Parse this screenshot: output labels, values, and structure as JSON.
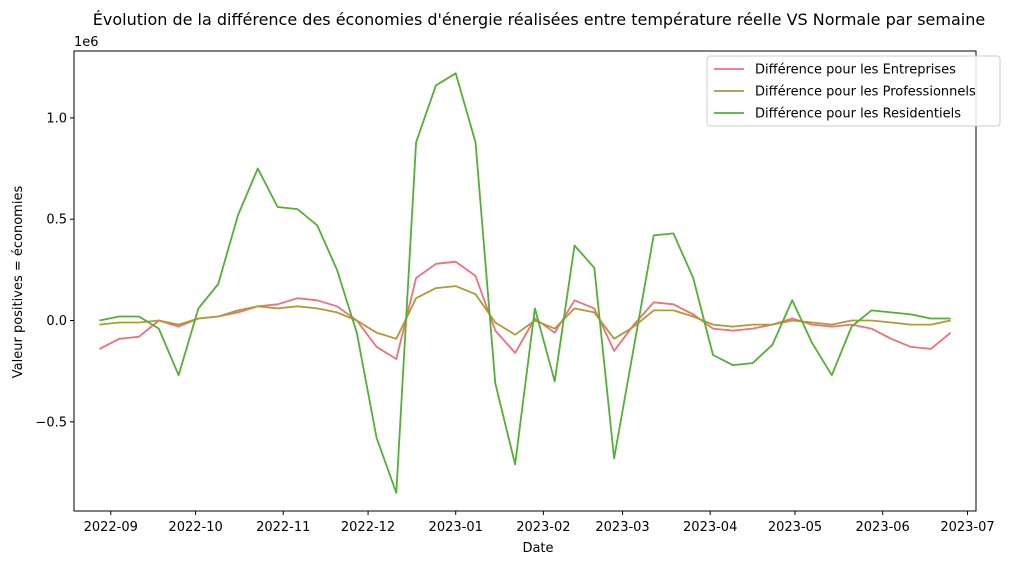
{
  "chart_data": {
    "type": "line",
    "title": "Évolution de la différence des économies d'énergie réalisées entre température réelle VS Normale par semaine",
    "xlabel": "Date",
    "ylabel": "Valeur positives = économies",
    "y_offset_text": "1e6",
    "xlim": [
      "2022-08-19",
      "2023-07-04"
    ],
    "ylim": [
      -0.94,
      1.33
    ],
    "x_ticks": [
      {
        "date": "2022-09-01",
        "label": "2022-09"
      },
      {
        "date": "2022-10-01",
        "label": "2022-10"
      },
      {
        "date": "2022-11-01",
        "label": "2022-11"
      },
      {
        "date": "2022-12-01",
        "label": "2022-12"
      },
      {
        "date": "2023-01-01",
        "label": "2023-01"
      },
      {
        "date": "2023-02-01",
        "label": "2023-02"
      },
      {
        "date": "2023-03-01",
        "label": "2023-03"
      },
      {
        "date": "2023-04-01",
        "label": "2023-04"
      },
      {
        "date": "2023-05-01",
        "label": "2023-05"
      },
      {
        "date": "2023-06-01",
        "label": "2023-06"
      },
      {
        "date": "2023-07-01",
        "label": "2023-07"
      }
    ],
    "y_ticks": [
      {
        "value": -0.5,
        "label": "−0.5"
      },
      {
        "value": 0.0,
        "label": "0.0"
      },
      {
        "value": 0.5,
        "label": "0.5"
      },
      {
        "value": 1.0,
        "label": "1.0"
      }
    ],
    "legend_position": "top-right",
    "grid": false,
    "x": [
      "2022-08-28",
      "2022-09-04",
      "2022-09-11",
      "2022-09-18",
      "2022-09-25",
      "2022-10-02",
      "2022-10-09",
      "2022-10-16",
      "2022-10-23",
      "2022-10-30",
      "2022-11-06",
      "2022-11-13",
      "2022-11-20",
      "2022-11-27",
      "2022-12-04",
      "2022-12-11",
      "2022-12-18",
      "2022-12-25",
      "2023-01-01",
      "2023-01-08",
      "2023-01-15",
      "2023-01-22",
      "2023-01-29",
      "2023-02-05",
      "2023-02-12",
      "2023-02-19",
      "2023-02-26",
      "2023-03-05",
      "2023-03-12",
      "2023-03-19",
      "2023-03-26",
      "2023-04-02",
      "2023-04-09",
      "2023-04-16",
      "2023-04-23",
      "2023-04-30",
      "2023-05-07",
      "2023-05-14",
      "2023-05-21",
      "2023-05-28",
      "2023-06-04",
      "2023-06-11",
      "2023-06-18",
      "2023-06-25"
    ],
    "series": [
      {
        "name": "Différence pour les Entreprises",
        "color": "#f0707c",
        "values": [
          -0.14,
          -0.09,
          -0.08,
          0.0,
          -0.03,
          0.01,
          0.02,
          0.04,
          0.07,
          0.08,
          0.11,
          0.1,
          0.07,
          0.0,
          -0.13,
          -0.19,
          0.21,
          0.28,
          0.29,
          0.22,
          -0.05,
          -0.16,
          0.01,
          -0.06,
          0.1,
          0.06,
          -0.15,
          -0.02,
          0.09,
          0.08,
          0.03,
          -0.04,
          -0.05,
          -0.04,
          -0.02,
          0.01,
          -0.02,
          -0.03,
          -0.02,
          -0.04,
          -0.09,
          -0.13,
          -0.14,
          -0.06
        ]
      },
      {
        "name": "Différence pour les Professionnels",
        "color": "#b09a36",
        "values": [
          -0.02,
          -0.01,
          -0.01,
          0.0,
          -0.02,
          0.01,
          0.02,
          0.05,
          0.07,
          0.06,
          0.07,
          0.06,
          0.04,
          0.0,
          -0.06,
          -0.09,
          0.11,
          0.16,
          0.17,
          0.13,
          -0.01,
          -0.07,
          0.0,
          -0.04,
          0.06,
          0.04,
          -0.09,
          -0.03,
          0.05,
          0.05,
          0.02,
          -0.02,
          -0.03,
          -0.02,
          -0.02,
          0.0,
          -0.01,
          -0.02,
          0.0,
          0.0,
          -0.01,
          -0.02,
          -0.02,
          0.0
        ]
      },
      {
        "name": "Différence pour les Residentiels",
        "color": "#52b033",
        "values": [
          0.0,
          0.02,
          0.02,
          -0.04,
          -0.27,
          0.06,
          0.18,
          0.52,
          0.75,
          0.56,
          0.55,
          0.47,
          0.25,
          -0.06,
          -0.58,
          -0.85,
          0.88,
          1.16,
          1.22,
          0.88,
          -0.31,
          -0.71,
          0.06,
          -0.3,
          0.37,
          0.26,
          -0.68,
          -0.13,
          0.42,
          0.43,
          0.21,
          -0.17,
          -0.22,
          -0.21,
          -0.12,
          0.1,
          -0.11,
          -0.27,
          -0.03,
          0.05,
          0.04,
          0.03,
          0.01,
          0.01
        ]
      }
    ]
  }
}
